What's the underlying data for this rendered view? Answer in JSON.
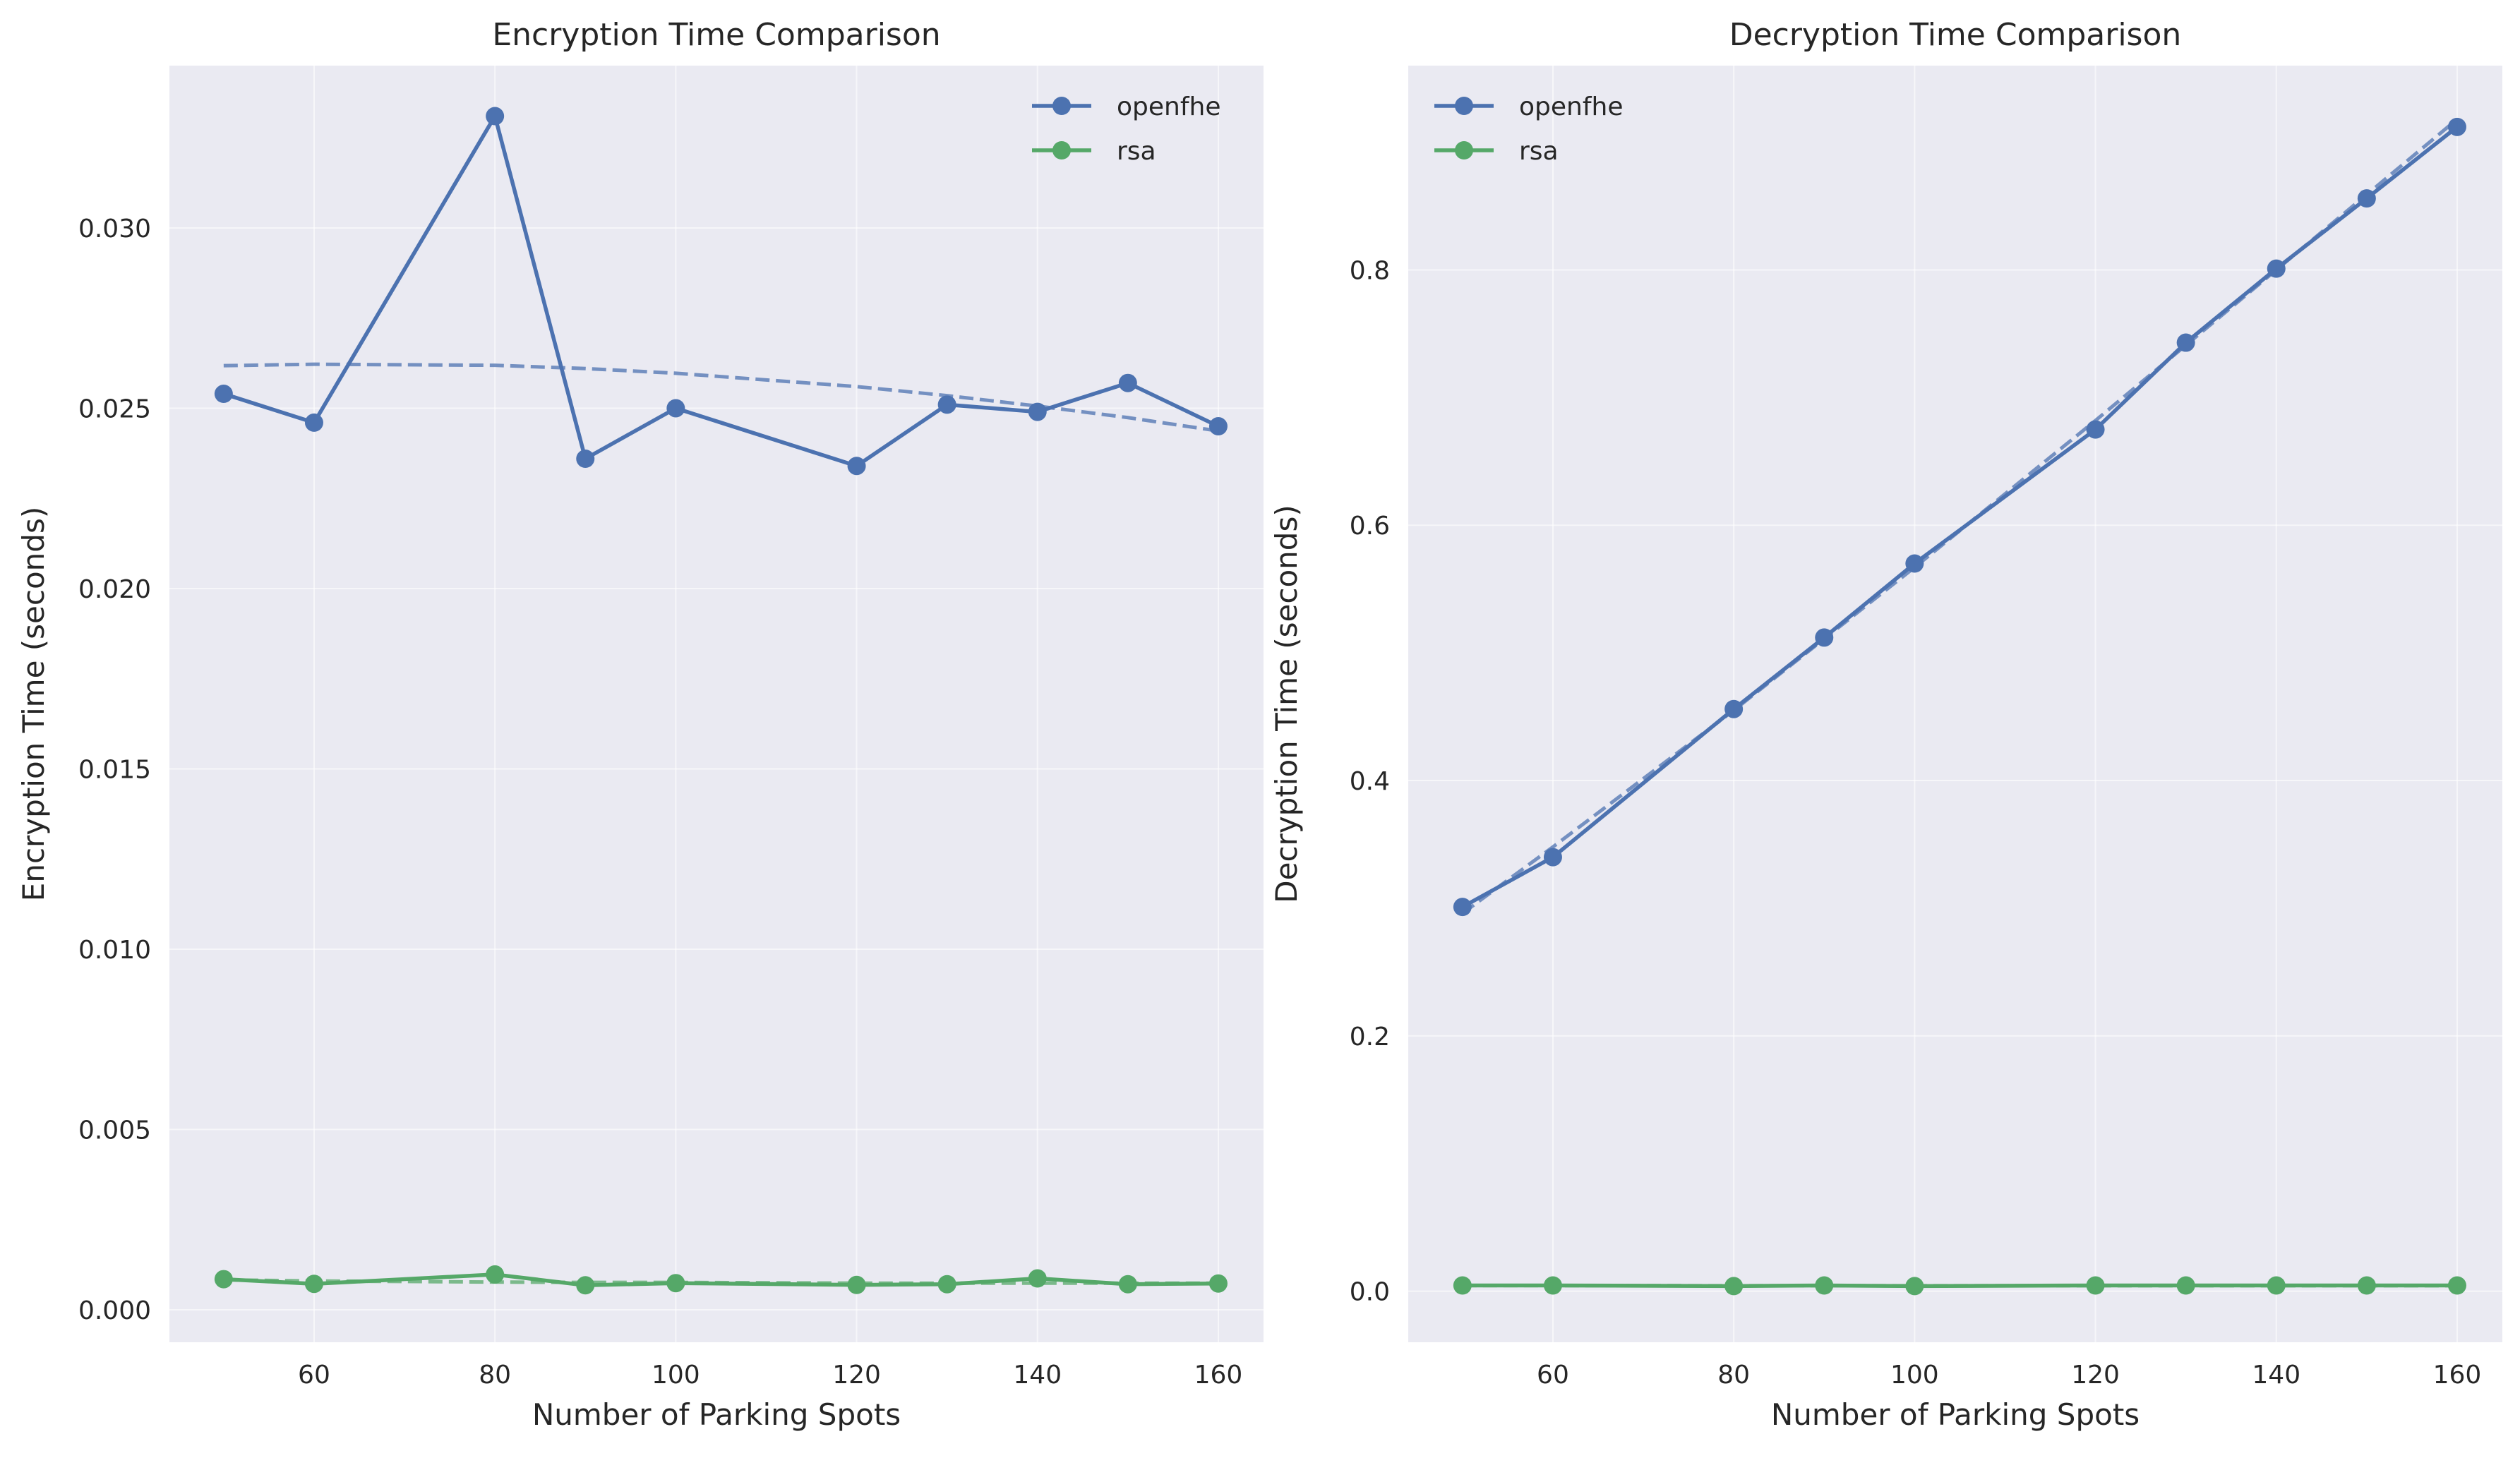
{
  "chart_data": [
    {
      "type": "line",
      "title": "Encryption Time Comparison",
      "xlabel": "Number of Parking Spots",
      "ylabel": "Encryption Time (seconds)",
      "xlim": [
        44,
        165
      ],
      "ylim": [
        -0.0009,
        0.0345
      ],
      "xticks": [
        60,
        80,
        100,
        120,
        140,
        160
      ],
      "yticks": [
        0.0,
        0.005,
        0.01,
        0.015,
        0.02,
        0.025,
        0.03
      ],
      "ytick_labels": [
        "0.000",
        "0.005",
        "0.010",
        "0.015",
        "0.020",
        "0.025",
        "0.030"
      ],
      "grid": true,
      "legend_position": "top-right",
      "x": [
        50,
        60,
        80,
        90,
        100,
        120,
        130,
        140,
        150,
        160
      ],
      "series": [
        {
          "name": "openfhe",
          "color": "#4c72b0",
          "values": [
            0.0254,
            0.0246,
            0.0331,
            0.0236,
            0.025,
            0.0234,
            0.0251,
            0.0249,
            0.0257,
            0.0245
          ],
          "trend": [
            0.02618,
            0.02622,
            0.02619,
            0.0261,
            0.02597,
            0.0256,
            0.02535,
            0.02506,
            0.02474,
            0.02437
          ]
        },
        {
          "name": "rsa",
          "color": "#55a868",
          "values": [
            0.00085,
            0.00072,
            0.00098,
            0.00068,
            0.00074,
            0.00069,
            0.00071,
            0.00087,
            0.00071,
            0.00073
          ],
          "trend": [
            0.00083,
            0.0008,
            0.00077,
            0.00076,
            0.00076,
            0.00074,
            0.00074,
            0.00074,
            0.00074,
            0.00074
          ]
        }
      ]
    },
    {
      "type": "line",
      "title": "Decryption Time Comparison",
      "xlabel": "Number of Parking Spots",
      "ylabel": "Decryption Time (seconds)",
      "xlim": [
        44,
        165
      ],
      "ylim": [
        -0.04,
        0.96
      ],
      "xticks": [
        60,
        80,
        100,
        120,
        140,
        160
      ],
      "yticks": [
        0.0,
        0.2,
        0.4,
        0.6,
        0.8
      ],
      "ytick_labels": [
        "0.0",
        "0.2",
        "0.4",
        "0.6",
        "0.8"
      ],
      "grid": true,
      "legend_position": "top-left",
      "x": [
        50,
        60,
        80,
        90,
        100,
        120,
        130,
        140,
        150,
        160
      ],
      "series": [
        {
          "name": "openfhe",
          "color": "#4c72b0",
          "values": [
            0.301,
            0.34,
            0.456,
            0.512,
            0.57,
            0.675,
            0.743,
            0.801,
            0.856,
            0.912
          ],
          "trend": [
            0.296,
            0.348,
            0.455,
            0.511,
            0.567,
            0.682,
            0.741,
            0.8,
            0.859,
            0.918
          ]
        },
        {
          "name": "rsa",
          "color": "#55a868",
          "values": [
            0.0045,
            0.0045,
            0.004,
            0.0045,
            0.004,
            0.0045,
            0.0045,
            0.0045,
            0.0045,
            0.0045
          ],
          "trend": [
            0.0044,
            0.0044,
            0.0043,
            0.0043,
            0.0043,
            0.0043,
            0.0043,
            0.0043,
            0.0043,
            0.0043
          ]
        }
      ]
    }
  ]
}
